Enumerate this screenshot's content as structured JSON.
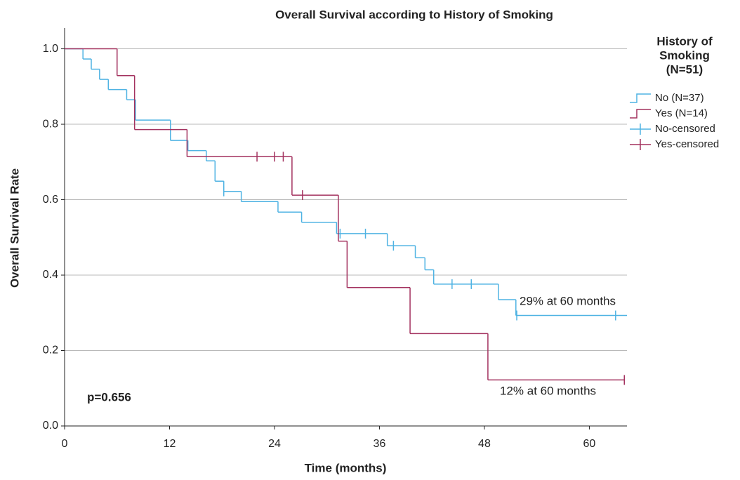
{
  "chart_data": {
    "type": "step",
    "title": "Overall Survival according to History of Smoking",
    "x_label": "Time (months)",
    "y_label": "Overall Survival Rate",
    "legend_title": [
      "History of",
      "Smoking",
      "(N=51)"
    ],
    "legend_position": "right",
    "grid": true,
    "xlim": [
      0,
      64.3
    ],
    "ylim": [
      0,
      1.055
    ],
    "xticks": [
      0,
      12,
      24,
      36,
      48,
      60
    ],
    "yticks": [
      {
        "value": 0,
        "label": "0.0"
      },
      0.2,
      0.4,
      0.6,
      0.8,
      {
        "value": 1,
        "label": "1.0"
      }
    ],
    "annotations": [
      "29% at 60 months",
      "12% at 60 months",
      "p=0.656"
    ],
    "series": [
      {
        "name": "No (N=37)",
        "kind": "line",
        "color": "#4fb3e3",
        "x": [
          0,
          2.1,
          3.05,
          4.0,
          5.0,
          7.1,
          8.1,
          12.1,
          14.1,
          16.2,
          17.2,
          18.2,
          20.2,
          24.4,
          27.1,
          31.1,
          36.9,
          40.1,
          41.2,
          42.2,
          49.6,
          51.6,
          64.3
        ],
        "values": [
          1.0,
          0.973,
          0.946,
          0.919,
          0.892,
          0.865,
          0.811,
          0.757,
          0.73,
          0.703,
          0.649,
          0.622,
          0.595,
          0.567,
          0.54,
          0.51,
          0.478,
          0.446,
          0.414,
          0.376,
          0.335,
          0.293,
          0.293
        ]
      },
      {
        "name": "Yes (N=14)",
        "kind": "line",
        "color": "#a3325f",
        "x": [
          0,
          6.0,
          8.0,
          14.0,
          26.0,
          31.3,
          32.3,
          39.5,
          48.4,
          64.0
        ],
        "values": [
          1.0,
          0.929,
          0.786,
          0.714,
          0.612,
          0.49,
          0.367,
          0.245,
          0.122,
          0.122
        ]
      },
      {
        "name": "No-censored",
        "kind": "censor",
        "color": "#4fb3e3",
        "x": [
          18.2,
          31.5,
          34.4,
          37.6,
          44.3,
          46.5,
          51.7,
          63.0
        ],
        "values": [
          0.622,
          0.51,
          0.51,
          0.478,
          0.376,
          0.376,
          0.293,
          0.293
        ]
      },
      {
        "name": "Yes-censored",
        "kind": "censor",
        "color": "#a3325f",
        "x": [
          22.0,
          24.0,
          25.0,
          27.2,
          64.0
        ],
        "values": [
          0.714,
          0.714,
          0.714,
          0.612,
          0.122
        ]
      }
    ]
  }
}
